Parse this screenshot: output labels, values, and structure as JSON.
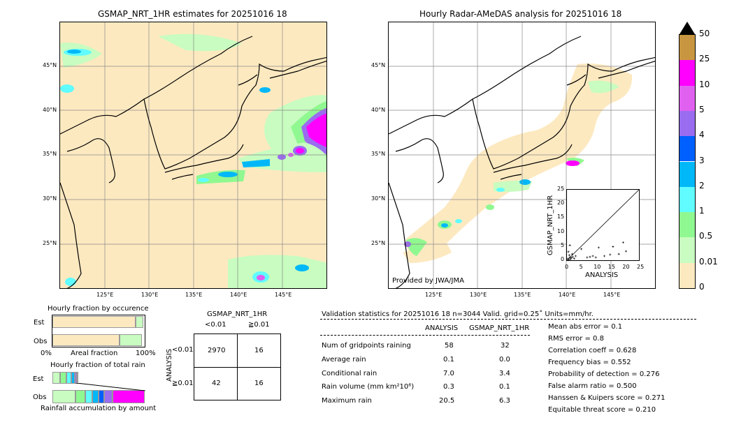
{
  "left_map": {
    "title": "GSMAP_NRT_1HR estimates for 20251016 18",
    "lat_labels": [
      "45°N",
      "40°N",
      "35°N",
      "30°N",
      "25°N"
    ],
    "lon_labels": [
      "125°E",
      "130°E",
      "135°E",
      "140°E",
      "145°E"
    ]
  },
  "right_map": {
    "title": "Hourly Radar-AMeDAS analysis for 20251016 18",
    "lat_labels": [
      "45°N",
      "40°N",
      "35°N",
      "30°N",
      "25°N"
    ],
    "lon_labels": [
      "125°E",
      "130°E",
      "135°E",
      "140°E",
      "145°E"
    ],
    "credit": "Provided by JWA/JMA"
  },
  "colorbar": {
    "labels": [
      "50",
      "25",
      "10",
      "5",
      "4",
      "3",
      "2",
      "1",
      "0.5",
      "0.01",
      "0"
    ],
    "colors": [
      "#c89640",
      "#ff00ff",
      "#e060f0",
      "#9a6cf0",
      "#0060ff",
      "#00b8f8",
      "#60fcff",
      "#90f890",
      "#c8fcc0",
      "#fde9c0"
    ]
  },
  "chart_data": [
    {
      "type": "scatter",
      "title": "",
      "xlabel": "ANALYSIS",
      "ylabel": "GSMAP_NRT_1HR",
      "xlim": [
        0,
        25
      ],
      "ylim": [
        0,
        25
      ],
      "xticks": [
        "0",
        "5",
        "10",
        "15",
        "20",
        "25"
      ],
      "yticks": [
        "0",
        "5",
        "10",
        "15",
        "20",
        "25"
      ],
      "points": [
        [
          0.3,
          0.5
        ],
        [
          0.6,
          0.2
        ],
        [
          1.0,
          1.0
        ],
        [
          1.2,
          0.4
        ],
        [
          0.8,
          1.8
        ],
        [
          1.5,
          0.8
        ],
        [
          2.0,
          1.2
        ],
        [
          0.5,
          3.0
        ],
        [
          1.8,
          2.2
        ],
        [
          2.5,
          0.6
        ],
        [
          1.0,
          5.3
        ],
        [
          3.0,
          1.5
        ],
        [
          5.0,
          4.0
        ],
        [
          7.0,
          1.0
        ],
        [
          8.0,
          1.2
        ],
        [
          9.0,
          1.5
        ],
        [
          10.0,
          1.0
        ],
        [
          11.0,
          4.5
        ],
        [
          13.0,
          1.5
        ],
        [
          15.0,
          2.0
        ],
        [
          16.0,
          4.8
        ],
        [
          18.0,
          2.2
        ],
        [
          19.5,
          6.3
        ],
        [
          20.5,
          3.2
        ]
      ]
    },
    {
      "type": "bar",
      "title": "Hourly fraction by occurence",
      "categories": [
        "Est",
        "Obs"
      ],
      "xlabel_left": "0%",
      "xlabel_mid": "Areal fraction",
      "xlabel_right": "100%"
    },
    {
      "type": "bar",
      "title": "Hourly fraction of total rain",
      "categories": [
        "Est",
        "Obs"
      ],
      "xlabel": "Rainfall accumulation by amount"
    },
    {
      "type": "table",
      "title": "GSMAP_NRT_1HR",
      "col_headers": [
        "<0.01",
        "≧0.01"
      ],
      "row_label": "ANALYSIS",
      "row_headers": [
        "<0.01",
        "≧0.01"
      ],
      "cells": [
        [
          "2970",
          "16"
        ],
        [
          "42",
          "16"
        ]
      ]
    }
  ],
  "validation": {
    "header": "Validation statistics for 20251016 18  n=3044 Valid. grid=0.25˚ Units=mm/hr.",
    "col_analysis": "ANALYSIS",
    "col_gsmap": "GSMAP_NRT_1HR",
    "rows": [
      {
        "label": "Num of gridpoints raining",
        "a": "58",
        "g": "32"
      },
      {
        "label": "Average rain",
        "a": "0.1",
        "g": "0.0"
      },
      {
        "label": "Conditional rain",
        "a": "7.0",
        "g": "3.4"
      },
      {
        "label": "Rain volume (mm km²10⁶)",
        "a": "0.3",
        "g": "0.1"
      },
      {
        "label": "Maximum rain",
        "a": "20.5",
        "g": "6.3"
      }
    ],
    "scores": [
      "Mean abs error =    0.1",
      "RMS error =    0.8",
      "Correlation coeff =  0.628",
      "Frequency bias =  0.552",
      "Probability of detection =  0.276",
      "False alarm ratio =  0.500",
      "Hanssen & Kuipers score =  0.271",
      "Equitable threat score =  0.210"
    ]
  }
}
